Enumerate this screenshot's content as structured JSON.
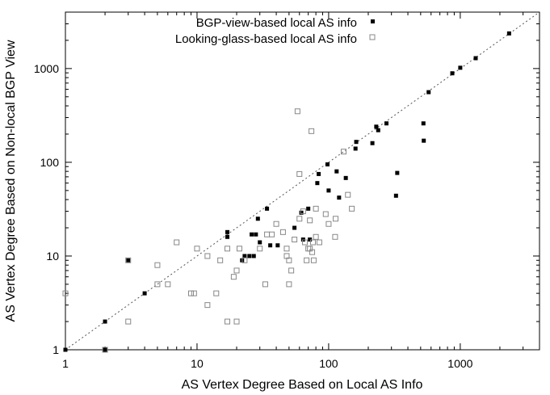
{
  "chart_data": {
    "type": "scatter",
    "xlabel": "AS Vertex Degree Based on Local AS Info",
    "ylabel": "AS Vertex Degree Based on Non-local BGP View",
    "x_scale": "log",
    "y_scale": "log",
    "xlim": [
      1,
      4000
    ],
    "ylim": [
      1,
      4000
    ],
    "x_ticks": [
      1,
      10,
      100,
      1000
    ],
    "x_tick_labels": [
      "1",
      "10",
      "100",
      "1000"
    ],
    "y_ticks": [
      1,
      10,
      100,
      1000
    ],
    "y_tick_labels": [
      "1",
      "10",
      "100",
      "1000"
    ],
    "diagonal_reference_line": true,
    "grid": false,
    "legend_position": "top-center",
    "series": [
      {
        "name": "BGP-view-based local AS info",
        "marker": "filled-square",
        "color": "#000000",
        "points": [
          [
            1,
            1
          ],
          [
            2,
            2
          ],
          [
            2,
            1
          ],
          [
            3,
            9
          ],
          [
            4,
            4
          ],
          [
            17,
            18
          ],
          [
            17,
            16
          ],
          [
            22,
            9
          ],
          [
            23,
            10
          ],
          [
            25,
            10
          ],
          [
            26,
            17
          ],
          [
            27,
            10
          ],
          [
            28,
            17
          ],
          [
            29,
            25
          ],
          [
            30,
            14
          ],
          [
            34,
            32
          ],
          [
            36,
            13
          ],
          [
            41,
            13
          ],
          [
            55,
            20
          ],
          [
            62,
            29
          ],
          [
            64,
            15
          ],
          [
            70,
            32
          ],
          [
            72,
            15
          ],
          [
            82,
            60
          ],
          [
            84,
            75
          ],
          [
            98,
            95
          ],
          [
            100,
            50
          ],
          [
            115,
            80
          ],
          [
            120,
            42
          ],
          [
            135,
            68
          ],
          [
            160,
            140
          ],
          [
            162,
            165
          ],
          [
            215,
            160
          ],
          [
            230,
            240
          ],
          [
            238,
            220
          ],
          [
            275,
            260
          ],
          [
            325,
            44
          ],
          [
            332,
            77
          ],
          [
            525,
            260
          ],
          [
            528,
            170
          ],
          [
            575,
            560
          ],
          [
            870,
            890
          ],
          [
            1000,
            1020
          ],
          [
            1310,
            1290
          ],
          [
            2350,
            2370
          ]
        ]
      },
      {
        "name": "Looking-glass-based local AS info",
        "marker": "open-square",
        "color": "#888888",
        "points": [
          [
            1,
            4
          ],
          [
            2,
            1
          ],
          [
            3,
            2
          ],
          [
            3,
            9
          ],
          [
            5,
            5
          ],
          [
            5,
            8
          ],
          [
            6,
            5
          ],
          [
            7,
            14
          ],
          [
            9,
            4
          ],
          [
            9.5,
            4
          ],
          [
            10,
            12
          ],
          [
            12,
            3
          ],
          [
            12,
            10
          ],
          [
            14,
            4
          ],
          [
            15,
            9
          ],
          [
            17,
            2
          ],
          [
            17,
            12
          ],
          [
            19,
            6
          ],
          [
            20,
            2
          ],
          [
            20,
            7
          ],
          [
            21,
            12
          ],
          [
            23,
            9
          ],
          [
            30,
            12
          ],
          [
            33,
            5
          ],
          [
            34,
            17
          ],
          [
            37,
            17
          ],
          [
            40,
            22
          ],
          [
            45,
            18
          ],
          [
            48,
            12
          ],
          [
            48,
            10
          ],
          [
            50,
            5
          ],
          [
            50,
            9
          ],
          [
            52,
            7
          ],
          [
            55,
            15
          ],
          [
            58,
            350
          ],
          [
            60,
            25
          ],
          [
            60,
            75
          ],
          [
            64,
            30
          ],
          [
            66,
            14
          ],
          [
            68,
            9
          ],
          [
            70,
            12
          ],
          [
            72,
            12
          ],
          [
            72,
            24
          ],
          [
            74,
            215
          ],
          [
            75,
            11
          ],
          [
            76,
            14
          ],
          [
            77,
            9
          ],
          [
            80,
            32
          ],
          [
            80,
            16
          ],
          [
            85,
            14
          ],
          [
            95,
            28
          ],
          [
            100,
            22
          ],
          [
            112,
            16
          ],
          [
            113,
            25
          ],
          [
            130,
            130
          ],
          [
            140,
            45
          ],
          [
            150,
            32
          ]
        ]
      }
    ]
  }
}
